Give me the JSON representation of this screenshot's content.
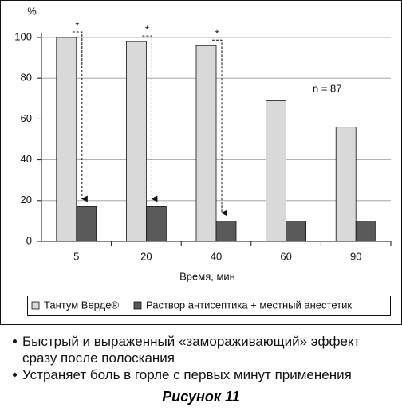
{
  "chart_data": {
    "type": "bar",
    "y_axis_label": "%",
    "x_label": "Время, мин",
    "categories": [
      "5",
      "20",
      "40",
      "60",
      "90"
    ],
    "series": [
      {
        "name": "Тантум Верде®",
        "color": "#d9d9d9",
        "values": [
          100,
          98,
          96,
          69,
          56
        ]
      },
      {
        "name": "Раствор антисептика + местный анестетик",
        "color": "#5a5a5a",
        "values": [
          17,
          17,
          10,
          10,
          10
        ]
      }
    ],
    "ylim": [
      0,
      100
    ],
    "yticks": [
      0,
      20,
      40,
      60,
      80,
      100
    ],
    "grid": true,
    "annotations": [
      "n = 87"
    ],
    "significance_markers": [
      "*",
      "*",
      "*"
    ]
  },
  "bullets": [
    "Быстрый и выраженный «замораживающий» эффект сразу после полоскания",
    "Устраняет боль в горле с первых минут применения"
  ],
  "caption": "Рисунок 11"
}
